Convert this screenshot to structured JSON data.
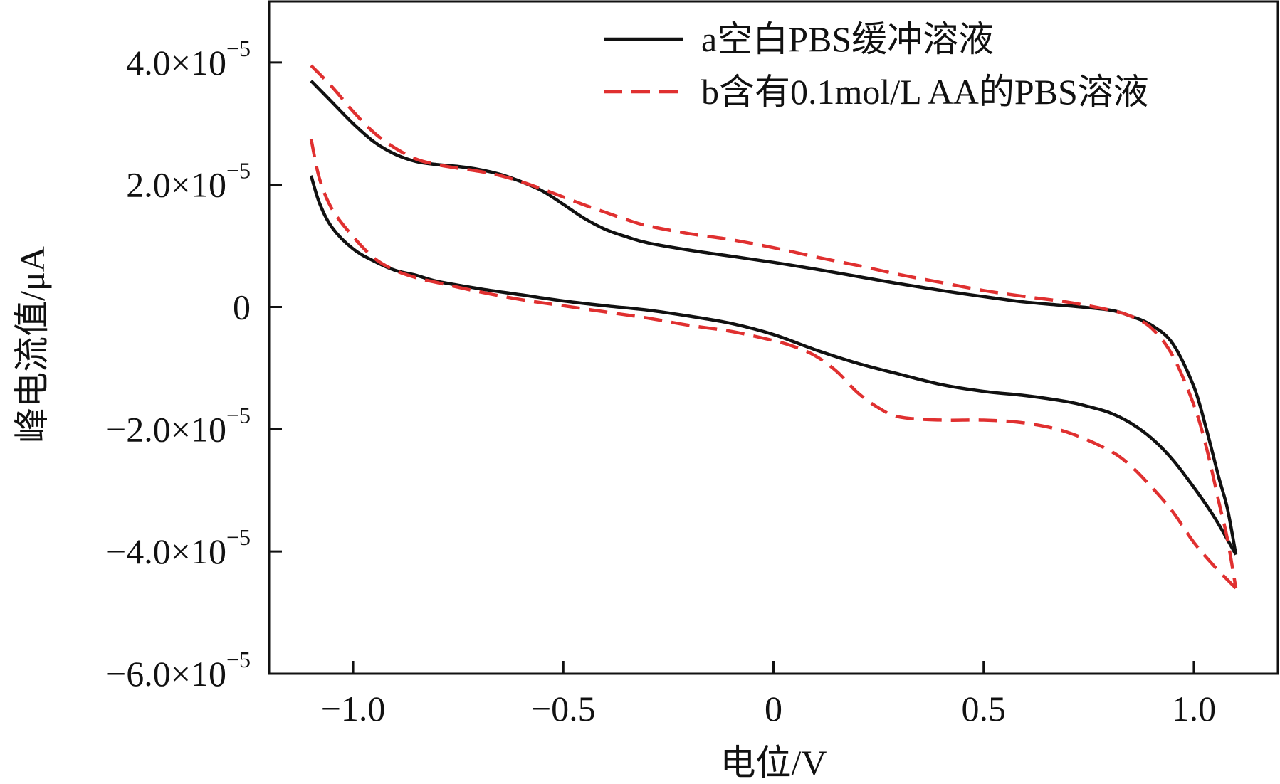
{
  "chart_data": {
    "type": "line",
    "title": "",
    "xlabel": "电位/V",
    "ylabel": "峰电流值/μA",
    "xlim": [
      -1.2,
      1.2
    ],
    "ylim": [
      -6e-05,
      5e-05
    ],
    "x_ticks": [
      {
        "value": -1.0,
        "label": "−1.0"
      },
      {
        "value": -0.5,
        "label": "−0.5"
      },
      {
        "value": 0.0,
        "label": "0"
      },
      {
        "value": 0.5,
        "label": "0.5"
      },
      {
        "value": 1.0,
        "label": "1.0"
      }
    ],
    "y_ticks": [
      {
        "value": 4e-05,
        "mantissa": "4.0×10",
        "exp": "−5"
      },
      {
        "value": 2e-05,
        "mantissa": "2.0×10",
        "exp": "−5"
      },
      {
        "value": 0,
        "mantissa": "0",
        "exp": ""
      },
      {
        "value": -2e-05,
        "mantissa": "−2.0×10",
        "exp": "−5"
      },
      {
        "value": -4e-05,
        "mantissa": "−4.0×10",
        "exp": "−5"
      },
      {
        "value": -6e-05,
        "mantissa": "−6.0×10",
        "exp": "−5"
      }
    ],
    "legend_position": "top-right",
    "series": [
      {
        "name": "a空白PBS缓冲溶液",
        "color": "#111111",
        "style": "solid",
        "upper": {
          "x": [
            -1.1,
            -1.05,
            -1.0,
            -0.95,
            -0.9,
            -0.85,
            -0.8,
            -0.75,
            -0.7,
            -0.65,
            -0.6,
            -0.55,
            -0.5,
            -0.45,
            -0.4,
            -0.35,
            -0.3,
            -0.2,
            -0.1,
            0.0,
            0.1,
            0.2,
            0.3,
            0.4,
            0.5,
            0.6,
            0.7,
            0.8,
            0.85,
            0.9,
            0.95,
            1.0,
            1.03,
            1.06,
            1.08,
            1.1
          ],
          "y": [
            3.7e-05,
            3.35e-05,
            3e-05,
            2.7e-05,
            2.5e-05,
            2.38e-05,
            2.33e-05,
            2.3e-05,
            2.25e-05,
            2.17e-05,
            2.05e-05,
            1.9e-05,
            1.68e-05,
            1.45e-05,
            1.27e-05,
            1.15e-05,
            1.05e-05,
            9.3e-06,
            8.3e-06,
            7.3e-06,
            6.2e-06,
            5e-06,
            3.8e-06,
            2.7e-06,
            1.7e-06,
            8e-07,
            2e-07,
            -5e-07,
            -1.5e-06,
            -3e-06,
            -6e-06,
            -1.3e-05,
            -2e-05,
            -2.8e-05,
            -3.3e-05,
            -4.05e-05
          ]
        },
        "lower": {
          "x": [
            -1.1,
            -1.08,
            -1.05,
            -1.0,
            -0.95,
            -0.9,
            -0.85,
            -0.8,
            -0.7,
            -0.6,
            -0.5,
            -0.4,
            -0.3,
            -0.2,
            -0.1,
            0.0,
            0.1,
            0.2,
            0.3,
            0.4,
            0.5,
            0.6,
            0.7,
            0.75,
            0.8,
            0.85,
            0.9,
            0.95,
            1.0,
            1.05,
            1.1
          ],
          "y": [
            2.15e-05,
            1.7e-05,
            1.3e-05,
            9.5e-06,
            7.5e-06,
            6e-06,
            5.2e-06,
            4.2e-06,
            3e-06,
            2e-06,
            1e-06,
            2e-07,
            -5e-07,
            -1.5e-06,
            -2.7e-06,
            -4.5e-06,
            -7e-06,
            -9.2e-06,
            -1.1e-05,
            -1.27e-05,
            -1.38e-05,
            -1.45e-05,
            -1.55e-05,
            -1.63e-05,
            -1.73e-05,
            -1.9e-05,
            -2.15e-05,
            -2.5e-05,
            -2.95e-05,
            -3.45e-05,
            -4.05e-05
          ]
        }
      },
      {
        "name": "b含有0.1mol/L AA的PBS溶液",
        "color": "#e03030",
        "style": "dashed",
        "upper": {
          "x": [
            -1.1,
            -1.05,
            -1.0,
            -0.95,
            -0.9,
            -0.85,
            -0.8,
            -0.75,
            -0.7,
            -0.65,
            -0.6,
            -0.55,
            -0.5,
            -0.45,
            -0.4,
            -0.35,
            -0.3,
            -0.2,
            -0.1,
            0.0,
            0.1,
            0.2,
            0.3,
            0.4,
            0.5,
            0.6,
            0.7,
            0.8,
            0.85,
            0.9,
            0.95,
            1.0,
            1.03,
            1.06,
            1.08,
            1.1
          ],
          "y": [
            3.95e-05,
            3.6e-05,
            3.2e-05,
            2.85e-05,
            2.6e-05,
            2.42e-05,
            2.33e-05,
            2.27e-05,
            2.22e-05,
            2.15e-05,
            2.05e-05,
            1.93e-05,
            1.8e-05,
            1.67e-05,
            1.55e-05,
            1.43e-05,
            1.33e-05,
            1.2e-05,
            1.1e-05,
            9.7e-06,
            8.2e-06,
            6.8e-06,
            5.3e-06,
            4e-06,
            2.7e-06,
            1.7e-06,
            8e-07,
            -5e-07,
            -1.5e-06,
            -3.5e-06,
            -8e-06,
            -1.6e-05,
            -2.3e-05,
            -3.2e-05,
            -3.8e-05,
            -4.6e-05
          ]
        },
        "lower": {
          "x": [
            -1.1,
            -1.08,
            -1.05,
            -1.0,
            -0.95,
            -0.9,
            -0.85,
            -0.8,
            -0.7,
            -0.6,
            -0.5,
            -0.4,
            -0.3,
            -0.2,
            -0.1,
            0.0,
            0.05,
            0.1,
            0.15,
            0.2,
            0.25,
            0.3,
            0.4,
            0.5,
            0.6,
            0.7,
            0.8,
            0.85,
            0.9,
            0.95,
            1.0,
            1.05,
            1.1
          ],
          "y": [
            2.75e-05,
            2.1e-05,
            1.6e-05,
            1.15e-05,
            8e-06,
            6e-06,
            4.8e-06,
            4e-06,
            2.5e-06,
            1.2e-06,
            2e-07,
            -8e-07,
            -1.8e-06,
            -3e-06,
            -4e-06,
            -5.5e-06,
            -6.5e-06,
            -8e-06,
            -1.05e-05,
            -1.4e-05,
            -1.65e-05,
            -1.8e-05,
            -1.85e-05,
            -1.85e-05,
            -1.9e-05,
            -2.05e-05,
            -2.35e-05,
            -2.6e-05,
            -2.95e-05,
            -3.35e-05,
            -3.85e-05,
            -4.25e-05,
            -4.6e-05
          ]
        }
      }
    ]
  }
}
